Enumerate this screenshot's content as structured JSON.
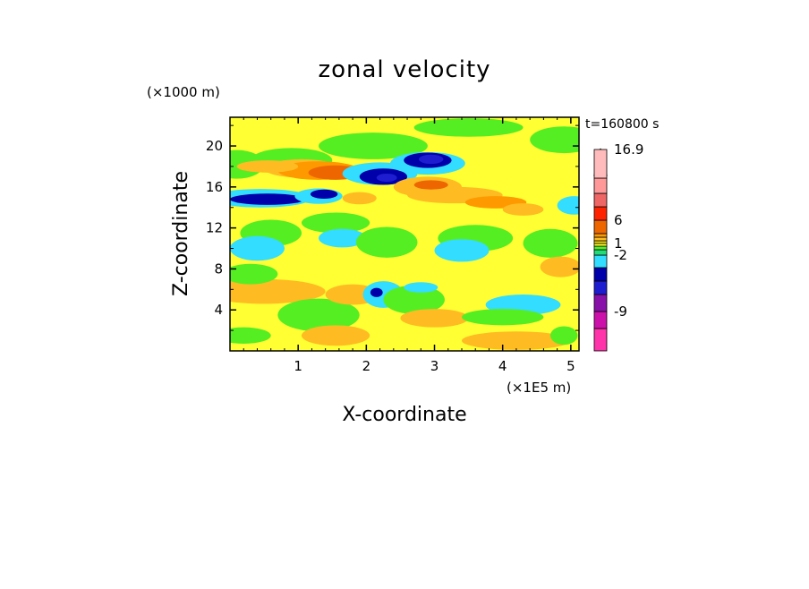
{
  "chart_data": {
    "type": "heatmap",
    "title": "zonal velocity",
    "xlabel": "X-coordinate",
    "ylabel": "Z-coordinate",
    "x_unit": "(×1E5 m)",
    "y_unit": "(×1000 m)",
    "time_label": "t=160800 s",
    "xlim": [
      0,
      5.12
    ],
    "ylim": [
      0,
      22.8
    ],
    "x_ticks": [
      "1",
      "2",
      "3",
      "4",
      "5"
    ],
    "y_ticks": [
      "4",
      "8",
      "12",
      "16",
      "20"
    ],
    "background_level": 1,
    "levels": [
      {
        "value": -12,
        "color": "#ff33aa"
      },
      {
        "value": -10,
        "color": "#cc11aa"
      },
      {
        "value": -8,
        "color": "#8811aa"
      },
      {
        "value": -6,
        "color": "#1e1ed0"
      },
      {
        "value": -4,
        "color": "#0000aa"
      },
      {
        "value": -2,
        "color": "#33ddff"
      },
      {
        "value": -1,
        "color": "#22dd77"
      },
      {
        "value": 0,
        "color": "#55ee22"
      },
      {
        "value": 1,
        "color": "#ffff33"
      },
      {
        "value": 2,
        "color": "#eedd00"
      },
      {
        "value": 3,
        "color": "#ffbb22"
      },
      {
        "value": 4,
        "color": "#ff9900"
      },
      {
        "value": 6,
        "color": "#ee6600"
      },
      {
        "value": 8,
        "color": "#ff2200"
      },
      {
        "value": 10,
        "color": "#ee6666"
      },
      {
        "value": 13,
        "color": "#ff9999"
      },
      {
        "value": 16.9,
        "color": "#ffbbbb"
      }
    ],
    "colorbar_labels": [
      "16.9",
      "6",
      "1",
      "-2",
      "-9"
    ],
    "features": [
      {
        "x": 0.9,
        "z": 18.6,
        "rx": 0.6,
        "rz": 1.2,
        "value": 0
      },
      {
        "x": 2.1,
        "z": 20.0,
        "rx": 0.8,
        "rz": 1.3,
        "value": 0
      },
      {
        "x": 4.9,
        "z": 20.6,
        "rx": 0.5,
        "rz": 1.3,
        "value": 0
      },
      {
        "x": 0.1,
        "z": 18.2,
        "rx": 0.4,
        "rz": 1.4,
        "value": 0
      },
      {
        "x": 1.05,
        "z": 17.8,
        "rx": 0.55,
        "rz": 0.9,
        "value": 3
      },
      {
        "x": 1.3,
        "z": 17.6,
        "rx": 0.6,
        "rz": 0.9,
        "value": 4
      },
      {
        "x": 1.55,
        "z": 17.4,
        "rx": 0.4,
        "rz": 0.7,
        "value": 6
      },
      {
        "x": 0.55,
        "z": 18.0,
        "rx": 0.45,
        "rz": 0.6,
        "value": 3
      },
      {
        "x": 0.45,
        "z": 14.9,
        "rx": 0.75,
        "rz": 0.9,
        "value": -2
      },
      {
        "x": 0.55,
        "z": 14.8,
        "rx": 0.55,
        "rz": 0.55,
        "value": -4
      },
      {
        "x": 1.3,
        "z": 15.1,
        "rx": 0.35,
        "rz": 0.75,
        "value": -2
      },
      {
        "x": 1.38,
        "z": 15.3,
        "rx": 0.2,
        "rz": 0.45,
        "value": -4
      },
      {
        "x": 2.2,
        "z": 17.3,
        "rx": 0.55,
        "rz": 1.1,
        "value": -2
      },
      {
        "x": 2.25,
        "z": 17.0,
        "rx": 0.35,
        "rz": 0.8,
        "value": -4
      },
      {
        "x": 2.3,
        "z": 16.9,
        "rx": 0.15,
        "rz": 0.4,
        "value": -6
      },
      {
        "x": 2.9,
        "z": 18.3,
        "rx": 0.55,
        "rz": 1.1,
        "value": -2
      },
      {
        "x": 2.9,
        "z": 18.6,
        "rx": 0.35,
        "rz": 0.75,
        "value": -4
      },
      {
        "x": 2.95,
        "z": 18.7,
        "rx": 0.18,
        "rz": 0.45,
        "value": -6
      },
      {
        "x": 2.9,
        "z": 16.0,
        "rx": 0.5,
        "rz": 1.0,
        "value": 3
      },
      {
        "x": 3.3,
        "z": 15.2,
        "rx": 0.7,
        "rz": 0.8,
        "value": 3
      },
      {
        "x": 2.95,
        "z": 16.2,
        "rx": 0.25,
        "rz": 0.45,
        "value": 6
      },
      {
        "x": 3.9,
        "z": 14.5,
        "rx": 0.45,
        "rz": 0.6,
        "value": 4
      },
      {
        "x": 4.3,
        "z": 13.8,
        "rx": 0.3,
        "rz": 0.6,
        "value": 3
      },
      {
        "x": 5.05,
        "z": 14.2,
        "rx": 0.15,
        "rz": 0.6,
        "value": -4
      },
      {
        "x": 5.05,
        "z": 14.2,
        "rx": 0.25,
        "rz": 0.9,
        "value": -2
      },
      {
        "x": 1.9,
        "z": 14.9,
        "rx": 0.25,
        "rz": 0.6,
        "value": 3
      },
      {
        "x": 0.6,
        "z": 11.5,
        "rx": 0.45,
        "rz": 1.3,
        "value": 0
      },
      {
        "x": 0.4,
        "z": 10.0,
        "rx": 0.4,
        "rz": 1.2,
        "value": -2
      },
      {
        "x": 1.55,
        "z": 12.5,
        "rx": 0.5,
        "rz": 1.0,
        "value": 0
      },
      {
        "x": 1.65,
        "z": 11.0,
        "rx": 0.35,
        "rz": 0.9,
        "value": -2
      },
      {
        "x": 2.3,
        "z": 10.6,
        "rx": 0.45,
        "rz": 1.5,
        "value": 0
      },
      {
        "x": 3.6,
        "z": 11.0,
        "rx": 0.55,
        "rz": 1.3,
        "value": 0
      },
      {
        "x": 3.4,
        "z": 9.8,
        "rx": 0.4,
        "rz": 1.1,
        "value": -2
      },
      {
        "x": 4.7,
        "z": 10.5,
        "rx": 0.4,
        "rz": 1.4,
        "value": 0
      },
      {
        "x": 0.5,
        "z": 5.8,
        "rx": 0.9,
        "rz": 1.2,
        "value": 3
      },
      {
        "x": 0.3,
        "z": 7.5,
        "rx": 0.4,
        "rz": 1.0,
        "value": 0
      },
      {
        "x": 1.3,
        "z": 3.5,
        "rx": 0.6,
        "rz": 1.6,
        "value": 0
      },
      {
        "x": 1.55,
        "z": 1.5,
        "rx": 0.5,
        "rz": 1.0,
        "value": 3
      },
      {
        "x": 1.8,
        "z": 5.5,
        "rx": 0.4,
        "rz": 1.0,
        "value": 3
      },
      {
        "x": 2.25,
        "z": 5.5,
        "rx": 0.3,
        "rz": 1.3,
        "value": -2
      },
      {
        "x": 2.15,
        "z": 5.7,
        "rx": 0.09,
        "rz": 0.45,
        "value": -4
      },
      {
        "x": 2.7,
        "z": 5.0,
        "rx": 0.45,
        "rz": 1.4,
        "value": 0
      },
      {
        "x": 2.8,
        "z": 6.2,
        "rx": 0.25,
        "rz": 0.5,
        "value": -2
      },
      {
        "x": 3.0,
        "z": 3.2,
        "rx": 0.5,
        "rz": 0.9,
        "value": 3
      },
      {
        "x": 4.3,
        "z": 4.5,
        "rx": 0.55,
        "rz": 1.0,
        "value": -2
      },
      {
        "x": 4.0,
        "z": 3.3,
        "rx": 0.6,
        "rz": 0.8,
        "value": 0
      },
      {
        "x": 4.85,
        "z": 8.2,
        "rx": 0.3,
        "rz": 1.0,
        "value": 3
      },
      {
        "x": 4.2,
        "z": 1.0,
        "rx": 0.8,
        "rz": 0.9,
        "value": 3
      },
      {
        "x": 4.9,
        "z": 1.5,
        "rx": 0.2,
        "rz": 0.9,
        "value": 0
      },
      {
        "x": 0.2,
        "z": 1.5,
        "rx": 0.4,
        "rz": 0.8,
        "value": 0
      },
      {
        "x": 3.5,
        "z": 21.8,
        "rx": 0.8,
        "rz": 0.9,
        "value": 0
      }
    ]
  }
}
